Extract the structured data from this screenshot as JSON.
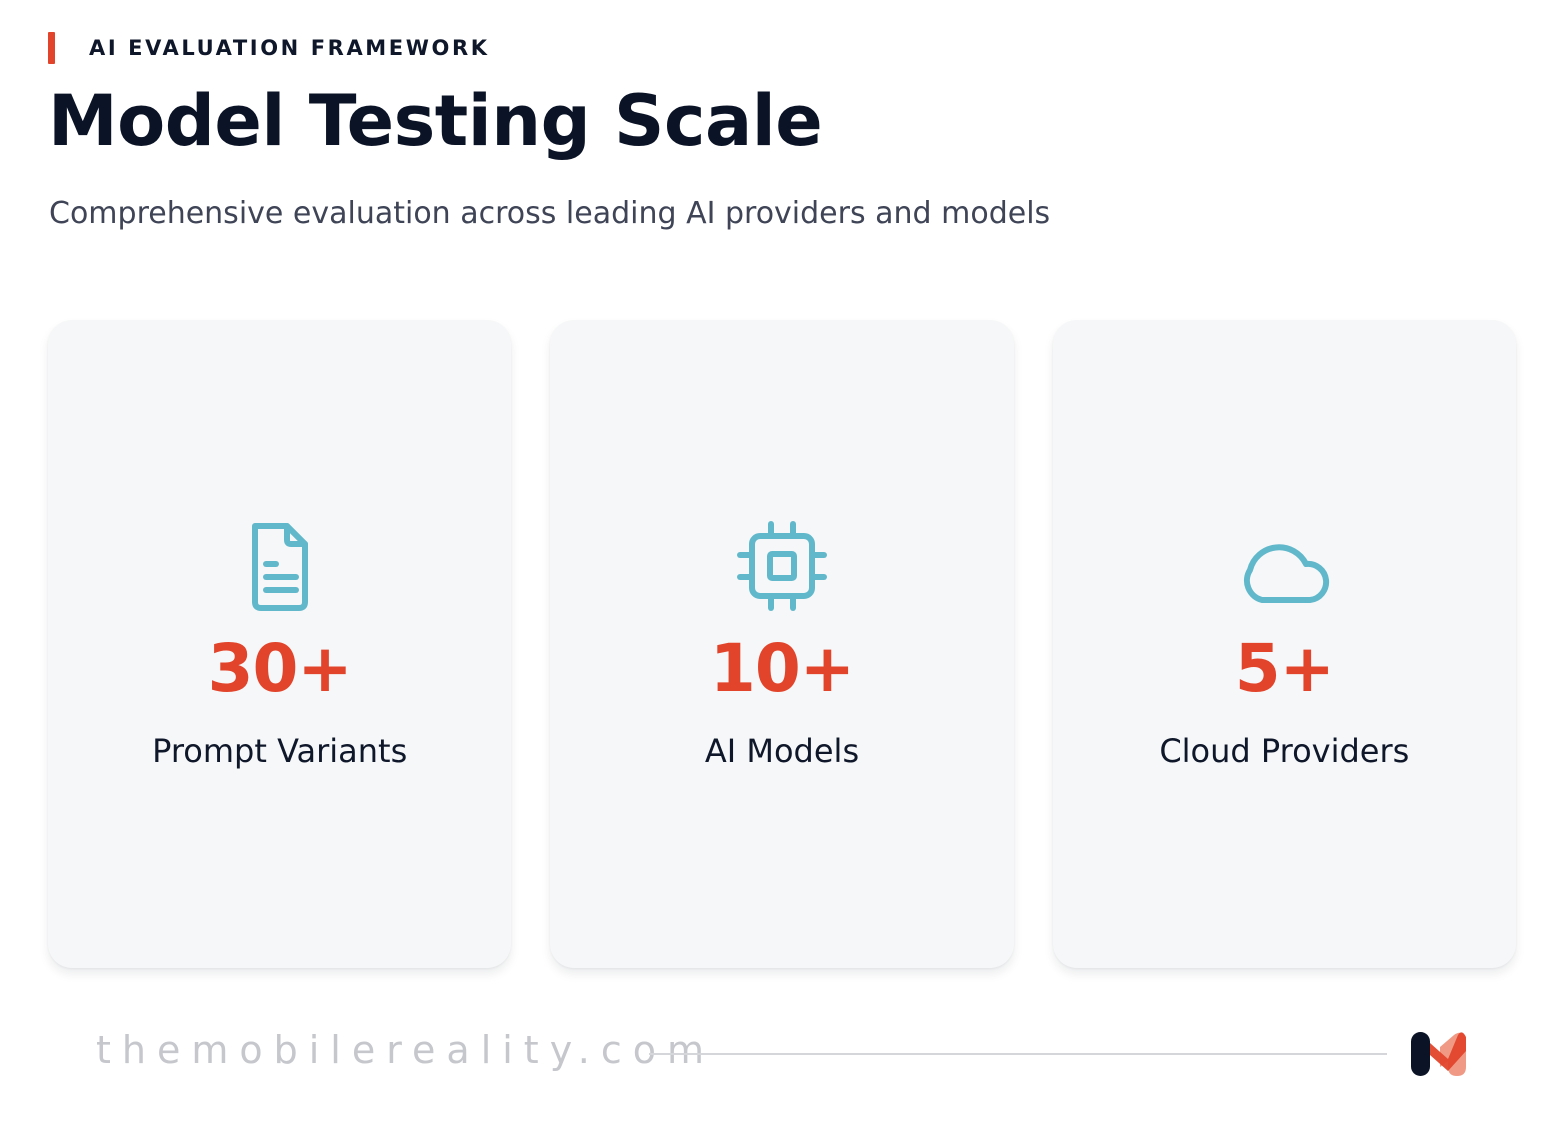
{
  "header": {
    "eyebrow": "AI EVALUATION FRAMEWORK",
    "title": "Model Testing Scale",
    "subtitle": "Comprehensive evaluation across leading AI providers and models"
  },
  "cards": [
    {
      "icon": "document-icon",
      "value": "30+",
      "label": "Prompt Variants"
    },
    {
      "icon": "chip-icon",
      "value": "10+",
      "label": "AI Models"
    },
    {
      "icon": "cloud-icon",
      "value": "5+",
      "label": "Cloud Providers"
    }
  ],
  "footer": {
    "url": "themobilereality.com"
  },
  "colors": {
    "accent": "#e2442b",
    "icon": "#62b8cb",
    "title": "#0b1326",
    "card_bg": "#f6f7f8"
  }
}
